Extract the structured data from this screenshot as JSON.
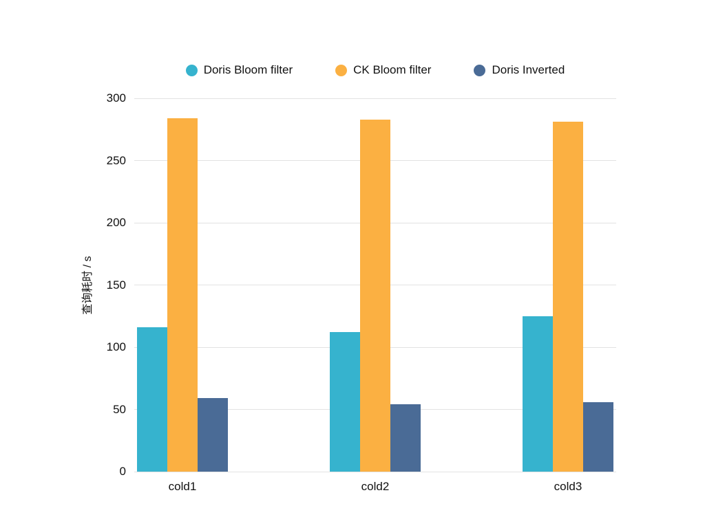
{
  "chart_data": {
    "type": "bar",
    "title": "",
    "xlabel": "",
    "ylabel": "查询耗时 / s",
    "ylim": [
      0,
      300
    ],
    "ytick_step": 50,
    "grid": true,
    "legend_position": "top",
    "categories": [
      "cold1",
      "cold2",
      "cold3"
    ],
    "series": [
      {
        "name": "Doris Bloom filter",
        "color": "#36b3ce",
        "values": [
          116,
          112,
          125
        ]
      },
      {
        "name": "CK Bloom filter",
        "color": "#fbb042",
        "values": [
          284,
          283,
          281
        ]
      },
      {
        "name": "Doris Inverted",
        "color": "#4a6b96",
        "values": [
          59,
          54,
          56
        ]
      }
    ]
  },
  "colors": {
    "grid": "#e2e2e2",
    "text": "#111111",
    "background": "#ffffff"
  }
}
